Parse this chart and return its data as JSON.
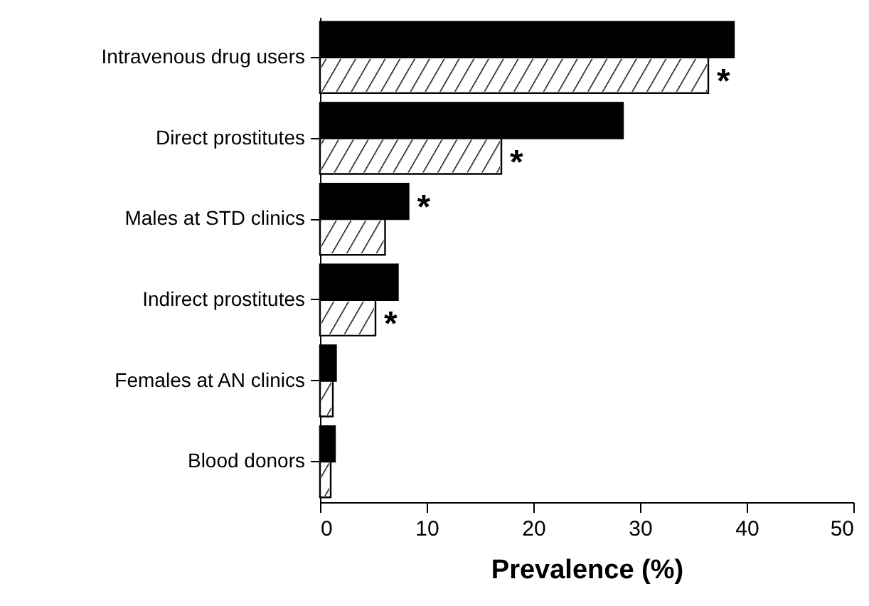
{
  "chart_data": {
    "type": "bar",
    "orientation": "horizontal",
    "xlabel": "Prevalence (%)",
    "categories": [
      "Intravenous drug users",
      "Direct prostitutes",
      "Males at STD clinics",
      "Indirect prostitutes",
      "Females at AN clinics",
      "Blood donors"
    ],
    "series": [
      {
        "color": "#000000",
        "values": [
          38.8,
          28.4,
          8.3,
          7.3,
          1.5,
          1.4
        ]
      },
      {
        "color": "#ffffff",
        "values": [
          36.4,
          17.0,
          6.1,
          5.2,
          1.2,
          1.0
        ]
      }
    ],
    "xlim": [
      0,
      50
    ],
    "xticks": [
      0,
      10,
      20,
      30,
      40,
      50
    ],
    "grid": false,
    "annotations": [
      {
        "text": "*",
        "x": 36.4,
        "y": "Intravenous drug users"
      },
      {
        "text": "*",
        "x": 17.0,
        "y": "Direct prostitutes"
      },
      {
        "text": "*",
        "x": 8.3,
        "y": "Males at STD clinics"
      },
      {
        "text": "*",
        "x": 5.2,
        "y": "Indirect prostitutes"
      }
    ]
  }
}
